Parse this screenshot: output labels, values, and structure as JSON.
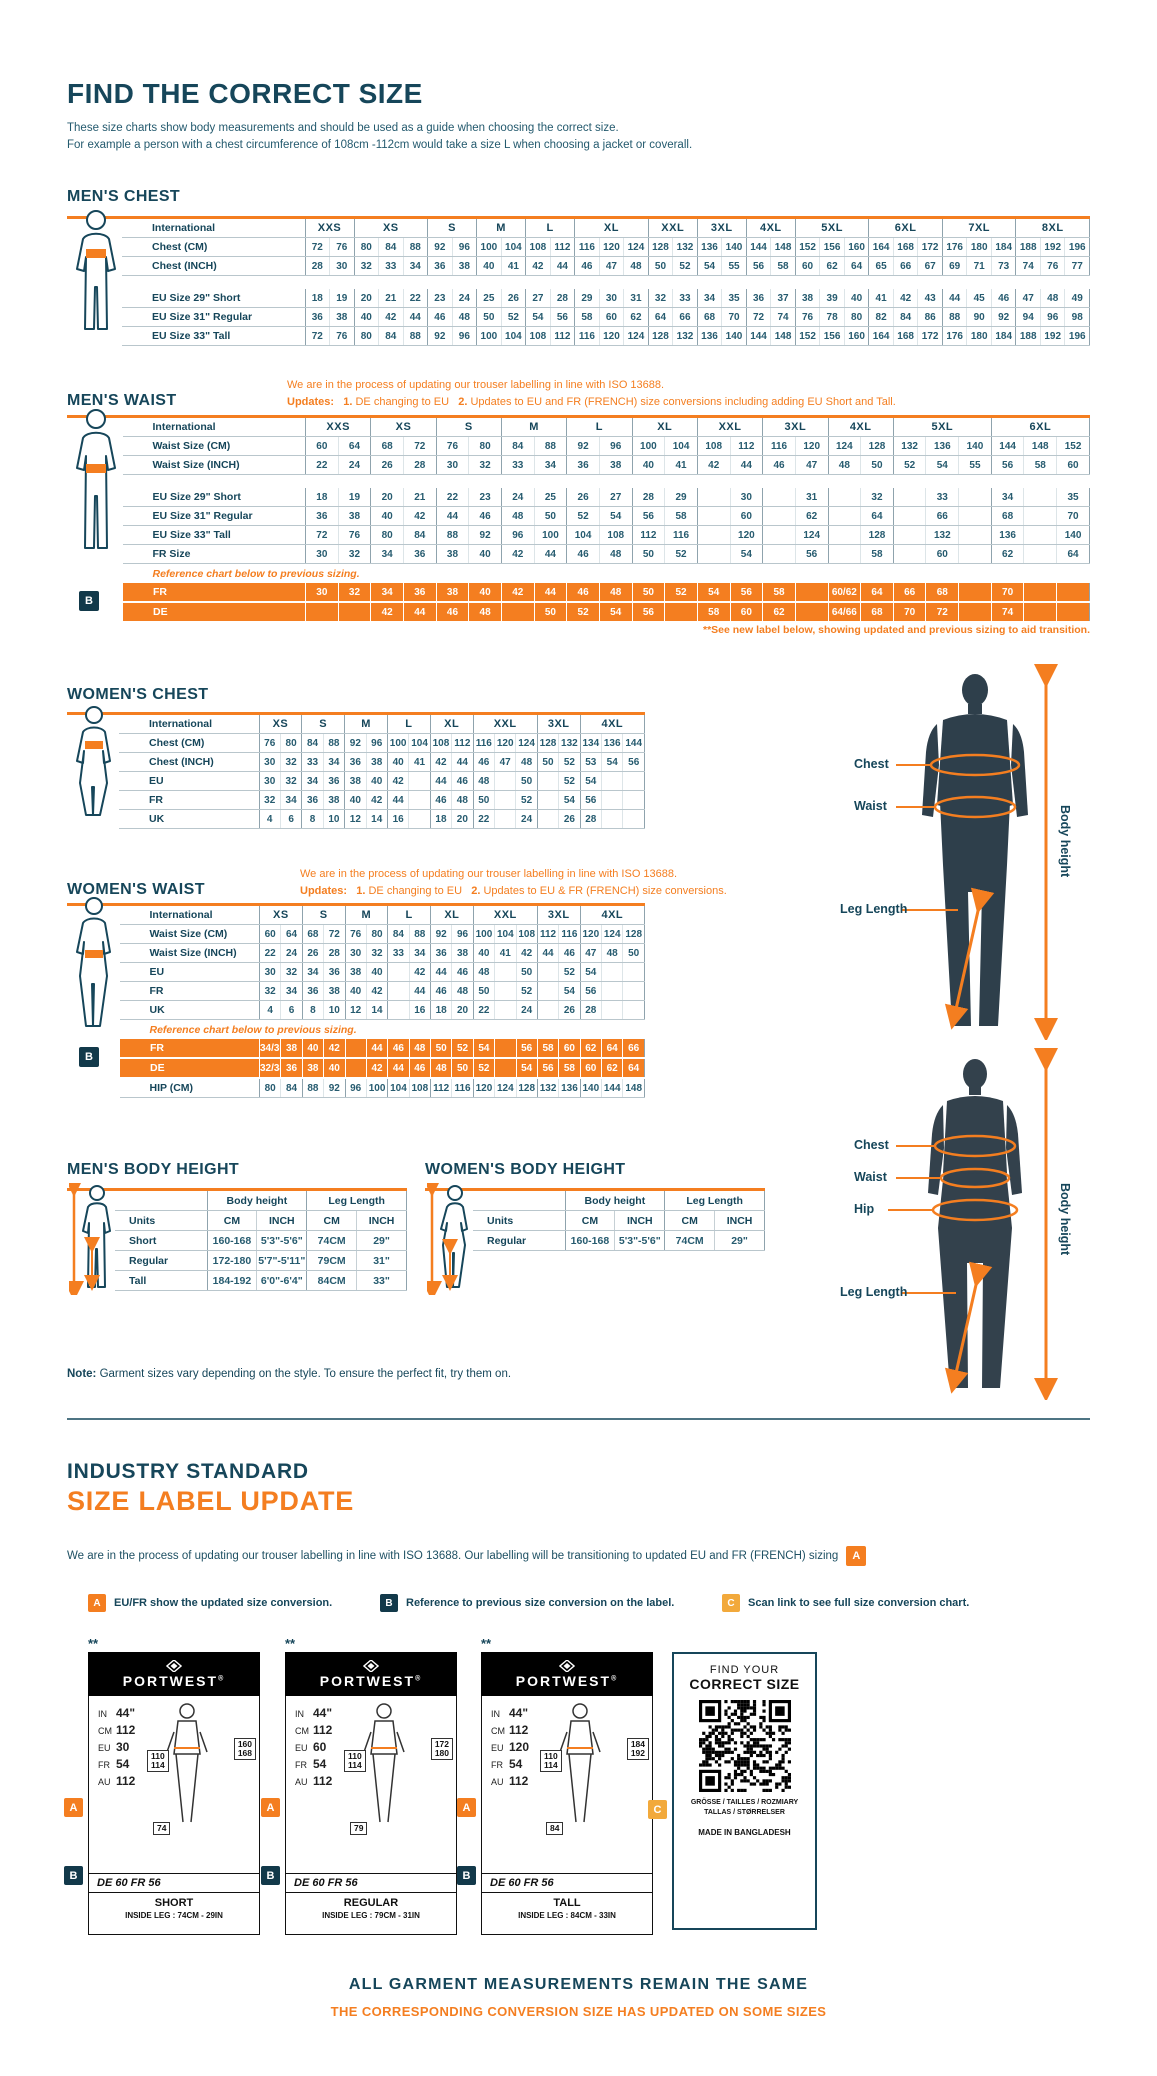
{
  "page": {
    "title": "FIND THE CORRECT SIZE",
    "subtitle1": "These size charts show body measurements and should be used as a guide when choosing the correct size.",
    "subtitle2": "For example a person with a chest circumference of 108cm -112cm would take a size L when choosing a jacket or coverall.",
    "note_label": "Note:",
    "note_text": " Garment sizes vary depending on the style. To ensure the perfect fit, try them on.",
    "bottom_line1": "ALL GARMENT MEASUREMENTS REMAIN THE SAME",
    "bottom_line2": "THE CORRESPONDING CONVERSION SIZE HAS UPDATED ON SOME SIZES"
  },
  "colors": {
    "accent_orange": "#F47E20",
    "dark_teal": "#16465A",
    "amber": "#F2A93B"
  },
  "figure_labels": {
    "chest": "Chest",
    "waist": "Waist",
    "hip": "Hip",
    "leg": "Leg Length",
    "height": "Body height"
  },
  "mens_chest": {
    "title": "MEN'S CHEST",
    "corner": "International",
    "sizes": [
      {
        "label": "XXS",
        "span": 2
      },
      {
        "label": "XS",
        "span": 3
      },
      {
        "label": "S",
        "span": 2
      },
      {
        "label": "M",
        "span": 2
      },
      {
        "label": "L",
        "span": 2
      },
      {
        "label": "XL",
        "span": 3
      },
      {
        "label": "XXL",
        "span": 2
      },
      {
        "label": "3XL",
        "span": 2
      },
      {
        "label": "4XL",
        "span": 2
      },
      {
        "label": "5XL",
        "span": 3
      },
      {
        "label": "6XL",
        "span": 3
      },
      {
        "label": "7XL",
        "span": 3
      },
      {
        "label": "8XL",
        "span": 3
      }
    ],
    "rows": [
      {
        "l": "Chest (CM)",
        "c": [
          "72",
          "76",
          "80",
          "84",
          "88",
          "92",
          "96",
          "100",
          "104",
          "108",
          "112",
          "116",
          "120",
          "124",
          "128",
          "132",
          "136",
          "140",
          "144",
          "148",
          "152",
          "156",
          "160",
          "164",
          "168",
          "172",
          "176",
          "180",
          "184",
          "188",
          "192",
          "196"
        ]
      },
      {
        "l": "Chest (INCH)",
        "c": [
          "28",
          "30",
          "32",
          "33",
          "34",
          "36",
          "38",
          "40",
          "41",
          "42",
          "44",
          "46",
          "47",
          "48",
          "50",
          "52",
          "54",
          "55",
          "56",
          "58",
          "60",
          "62",
          "64",
          "65",
          "66",
          "67",
          "69",
          "71",
          "73",
          "74",
          "76",
          "77"
        ]
      },
      {
        "t": "gap"
      },
      {
        "l": "EU Size 29\" Short",
        "c": [
          "18",
          "19",
          "20",
          "21",
          "22",
          "23",
          "24",
          "25",
          "26",
          "27",
          "28",
          "29",
          "30",
          "31",
          "32",
          "33",
          "34",
          "35",
          "36",
          "37",
          "38",
          "39",
          "40",
          "41",
          "42",
          "43",
          "44",
          "45",
          "46",
          "47",
          "48",
          "49"
        ]
      },
      {
        "l": "EU Size 31\" Regular",
        "c": [
          "36",
          "38",
          "40",
          "42",
          "44",
          "46",
          "48",
          "50",
          "52",
          "54",
          "56",
          "58",
          "60",
          "62",
          "64",
          "66",
          "68",
          "70",
          "72",
          "74",
          "76",
          "78",
          "80",
          "82",
          "84",
          "86",
          "88",
          "90",
          "92",
          "94",
          "96",
          "98"
        ]
      },
      {
        "l": "EU Size 33\" Tall",
        "c": [
          "72",
          "76",
          "80",
          "84",
          "88",
          "92",
          "96",
          "100",
          "104",
          "108",
          "112",
          "116",
          "120",
          "124",
          "128",
          "132",
          "136",
          "140",
          "144",
          "148",
          "152",
          "156",
          "160",
          "164",
          "168",
          "172",
          "176",
          "180",
          "184",
          "188",
          "192",
          "196"
        ]
      }
    ]
  },
  "mens_waist": {
    "title": "MEN'S WAIST",
    "corner": "International",
    "update_intro": "We are in the process of updating our trouser labelling in line with ISO 13688.",
    "updates_label": "Updates:",
    "update1_num": "1.",
    "update1": "DE changing to EU",
    "update2_num": "2.",
    "update2": "Updates to EU and FR (FRENCH) size conversions including adding EU Short and Tall.",
    "b_badge": "B",
    "footnote": "**See new label below, showing updated and previous sizing to aid transition.",
    "sizes": [
      {
        "label": "XXS",
        "span": 2
      },
      {
        "label": "XS",
        "span": 2
      },
      {
        "label": "S",
        "span": 2
      },
      {
        "label": "M",
        "span": 2
      },
      {
        "label": "L",
        "span": 2
      },
      {
        "label": "XL",
        "span": 2
      },
      {
        "label": "XXL",
        "span": 2
      },
      {
        "label": "3XL",
        "span": 2
      },
      {
        "label": "4XL",
        "span": 2
      },
      {
        "label": "5XL",
        "span": 3
      },
      {
        "label": "6XL",
        "span": 3
      }
    ],
    "rows": [
      {
        "l": "Waist Size (CM)",
        "c": [
          "60",
          "64",
          "68",
          "72",
          "76",
          "80",
          "84",
          "88",
          "92",
          "96",
          "100",
          "104",
          "108",
          "112",
          "116",
          "120",
          "124",
          "128",
          "132",
          "136",
          "140",
          "144",
          "148",
          "152"
        ]
      },
      {
        "l": "Waist Size (INCH)",
        "c": [
          "22",
          "24",
          "26",
          "28",
          "30",
          "32",
          "33",
          "34",
          "36",
          "38",
          "40",
          "41",
          "42",
          "44",
          "46",
          "47",
          "48",
          "50",
          "52",
          "54",
          "55",
          "56",
          "58",
          "60"
        ]
      },
      {
        "t": "gap"
      },
      {
        "l": "EU Size 29\" Short",
        "c": [
          "18",
          "19",
          "20",
          "21",
          "22",
          "23",
          "24",
          "25",
          "26",
          "27",
          "28",
          "29",
          "",
          "30",
          "",
          "31",
          "",
          "32",
          "",
          "33",
          "",
          "34",
          "",
          "35"
        ]
      },
      {
        "l": "EU Size 31\" Regular",
        "c": [
          "36",
          "38",
          "40",
          "42",
          "44",
          "46",
          "48",
          "50",
          "52",
          "54",
          "56",
          "58",
          "",
          "60",
          "",
          "62",
          "",
          "64",
          "",
          "66",
          "",
          "68",
          "",
          "70"
        ]
      },
      {
        "l": "EU Size 33\" Tall",
        "c": [
          "72",
          "76",
          "80",
          "84",
          "88",
          "92",
          "96",
          "100",
          "104",
          "108",
          "112",
          "116",
          "",
          "120",
          "",
          "124",
          "",
          "128",
          "",
          "132",
          "",
          "136",
          "",
          "140"
        ]
      },
      {
        "l": "FR Size",
        "c": [
          "30",
          "32",
          "34",
          "36",
          "38",
          "40",
          "42",
          "44",
          "46",
          "48",
          "50",
          "52",
          "",
          "54",
          "",
          "56",
          "",
          "58",
          "",
          "60",
          "",
          "62",
          "",
          "64"
        ]
      },
      {
        "t": "note",
        "text": "Reference chart below to previous sizing."
      },
      {
        "t": "orange",
        "l": "FR",
        "c": [
          "30",
          "32",
          "34",
          "36",
          "38",
          "40",
          "42",
          "44",
          "46",
          "48",
          "50",
          "52",
          "54",
          "56",
          "58",
          "",
          "60/62",
          "64",
          "66",
          "68",
          "",
          "70",
          "",
          ""
        ]
      },
      {
        "t": "orange",
        "l": "DE",
        "c": [
          "",
          "",
          "42",
          "44",
          "46",
          "48",
          "",
          "50",
          "52",
          "54",
          "56",
          "",
          "58",
          "60",
          "62",
          "",
          "64/66",
          "68",
          "70",
          "72",
          "",
          "74",
          "",
          ""
        ]
      }
    ]
  },
  "womens_chest": {
    "title": "WOMEN'S CHEST",
    "corner": "International",
    "sizes": [
      {
        "label": "XS",
        "span": 2
      },
      {
        "label": "S",
        "span": 2
      },
      {
        "label": "M",
        "span": 2
      },
      {
        "label": "L",
        "span": 2
      },
      {
        "label": "XL",
        "span": 2
      },
      {
        "label": "XXL",
        "span": 3
      },
      {
        "label": "3XL",
        "span": 2
      },
      {
        "label": "4XL",
        "span": 3
      }
    ],
    "rows": [
      {
        "l": "Chest (CM)",
        "c": [
          "76",
          "80",
          "84",
          "88",
          "92",
          "96",
          "100",
          "104",
          "108",
          "112",
          "116",
          "120",
          "124",
          "128",
          "132",
          "134",
          "136",
          "144"
        ]
      },
      {
        "l": "Chest (INCH)",
        "c": [
          "30",
          "32",
          "33",
          "34",
          "36",
          "38",
          "40",
          "41",
          "42",
          "44",
          "46",
          "47",
          "48",
          "50",
          "52",
          "53",
          "54",
          "56"
        ]
      },
      {
        "l": "EU",
        "c": [
          "30",
          "32",
          "34",
          "36",
          "38",
          "40",
          "42",
          "",
          "44",
          "46",
          "48",
          "",
          "50",
          "",
          "52",
          "54",
          "",
          ""
        ]
      },
      {
        "l": "FR",
        "c": [
          "32",
          "34",
          "36",
          "38",
          "40",
          "42",
          "44",
          "",
          "46",
          "48",
          "50",
          "",
          "52",
          "",
          "54",
          "56",
          "",
          ""
        ]
      },
      {
        "l": "UK",
        "c": [
          "4",
          "6",
          "8",
          "10",
          "12",
          "14",
          "16",
          "",
          "18",
          "20",
          "22",
          "",
          "24",
          "",
          "26",
          "28",
          "",
          ""
        ]
      }
    ]
  },
  "womens_waist": {
    "title": "WOMEN'S WAIST",
    "corner": "International",
    "update_intro": "We are in the process of updating our trouser labelling in line with ISO 13688.",
    "updates_label": "Updates:",
    "update1_num": "1.",
    "update1": "DE changing to EU",
    "update2_num": "2.",
    "update2": "Updates to EU & FR (FRENCH) size conversions.",
    "b_badge": "B",
    "sizes": [
      {
        "label": "XS",
        "span": 2
      },
      {
        "label": "S",
        "span": 2
      },
      {
        "label": "M",
        "span": 2
      },
      {
        "label": "L",
        "span": 2
      },
      {
        "label": "XL",
        "span": 2
      },
      {
        "label": "XXL",
        "span": 3
      },
      {
        "label": "3XL",
        "span": 2
      },
      {
        "label": "4XL",
        "span": 3
      }
    ],
    "rows": [
      {
        "l": "Waist Size (CM)",
        "c": [
          "60",
          "64",
          "68",
          "72",
          "76",
          "80",
          "84",
          "88",
          "92",
          "96",
          "100",
          "104",
          "108",
          "112",
          "116",
          "120",
          "124",
          "128"
        ]
      },
      {
        "l": "Waist Size (INCH)",
        "c": [
          "22",
          "24",
          "26",
          "28",
          "30",
          "32",
          "33",
          "34",
          "36",
          "38",
          "40",
          "41",
          "42",
          "44",
          "46",
          "47",
          "48",
          "50"
        ]
      },
      {
        "l": "EU",
        "c": [
          "30",
          "32",
          "34",
          "36",
          "38",
          "40",
          "",
          "42",
          "44",
          "46",
          "48",
          "",
          "50",
          "",
          "52",
          "54",
          "",
          ""
        ]
      },
      {
        "l": "FR",
        "c": [
          "32",
          "34",
          "36",
          "38",
          "40",
          "42",
          "",
          "44",
          "46",
          "48",
          "50",
          "",
          "52",
          "",
          "54",
          "56",
          "",
          ""
        ]
      },
      {
        "l": "UK",
        "c": [
          "4",
          "6",
          "8",
          "10",
          "12",
          "14",
          "",
          "16",
          "18",
          "20",
          "22",
          "",
          "24",
          "",
          "26",
          "28",
          "",
          ""
        ]
      },
      {
        "t": "note",
        "text": "Reference chart below to previous sizing."
      },
      {
        "t": "orange",
        "l": "FR",
        "c": [
          "34/36",
          "38",
          "40",
          "42",
          "",
          "44",
          "46",
          "48",
          "50",
          "52",
          "54",
          "",
          "56",
          "58",
          "60",
          "62",
          "64",
          "66"
        ]
      },
      {
        "t": "orange",
        "l": "DE",
        "c": [
          "32/34",
          "36",
          "38",
          "40",
          "",
          "42",
          "44",
          "46",
          "48",
          "50",
          "52",
          "",
          "54",
          "56",
          "58",
          "60",
          "62",
          "64"
        ]
      },
      {
        "l": "HIP (CM)",
        "c": [
          "80",
          "84",
          "88",
          "92",
          "96",
          "100",
          "104",
          "108",
          "112",
          "116",
          "120",
          "124",
          "128",
          "132",
          "136",
          "140",
          "144",
          "148"
        ]
      }
    ]
  },
  "mens_body_height": {
    "title": "MEN'S BODY HEIGHT",
    "group1": "Body height",
    "group2": "Leg Length",
    "units_label": "Units",
    "units": [
      "CM",
      "INCH",
      "CM",
      "INCH"
    ],
    "rows": [
      [
        "Short",
        "160-168",
        "5'3\"-5'6\"",
        "74CM",
        "29\""
      ],
      [
        "Regular",
        "172-180",
        "5'7\"-5'11\"",
        "79CM",
        "31\""
      ],
      [
        "Tall",
        "184-192",
        "6'0\"-6'4\"",
        "84CM",
        "33\""
      ]
    ]
  },
  "womens_body_height": {
    "title": "WOMEN'S BODY HEIGHT",
    "group1": "Body height",
    "group2": "Leg Length",
    "units_label": "Units",
    "units": [
      "CM",
      "INCH",
      "CM",
      "INCH"
    ],
    "rows": [
      [
        "Regular",
        "160-168",
        "5'3\"-5'6\"",
        "74CM",
        "29\""
      ]
    ]
  },
  "industry": {
    "heading1": "INDUSTRY STANDARD",
    "heading2": "SIZE LABEL UPDATE",
    "paragraph": "We are in the process of updating our trouser labelling in line with ISO 13688. Our labelling will be transitioning to updated EU and FR (FRENCH) sizing",
    "badge_a": "A",
    "badge_b": "B",
    "badge_c": "C",
    "legend": [
      {
        "badge": "A",
        "text": "EU/FR show the updated size conversion."
      },
      {
        "badge": "B",
        "text": "Reference to previous size conversion on the label."
      },
      {
        "badge": "C",
        "text": "Scan link to see full size conversion chart."
      }
    ]
  },
  "brand": {
    "name": "PORTWEST",
    "reg": "®"
  },
  "cards": [
    {
      "stars": "**",
      "fit": "SHORT",
      "inside_leg": "INSIDE LEG : 74CM - 29IN",
      "sizes": [
        {
          "k": "IN",
          "v": "44\""
        },
        {
          "k": "CM",
          "v": "112"
        },
        {
          "k": "EU",
          "v": "30"
        },
        {
          "k": "FR",
          "v": "54"
        },
        {
          "k": "AU",
          "v": "112"
        }
      ],
      "waist_top": "110",
      "waist_bot": "114",
      "h_top": "160",
      "h_bot": "168",
      "leg": "74",
      "prev": "DE 60 FR 56"
    },
    {
      "stars": "**",
      "fit": "REGULAR",
      "inside_leg": "INSIDE LEG : 79CM - 31IN",
      "sizes": [
        {
          "k": "IN",
          "v": "44\""
        },
        {
          "k": "CM",
          "v": "112"
        },
        {
          "k": "EU",
          "v": "60"
        },
        {
          "k": "FR",
          "v": "54"
        },
        {
          "k": "AU",
          "v": "112"
        }
      ],
      "waist_top": "110",
      "waist_bot": "114",
      "h_top": "172",
      "h_bot": "180",
      "leg": "79",
      "prev": "DE 60 FR 56"
    },
    {
      "stars": "**",
      "fit": "TALL",
      "inside_leg": "INSIDE LEG : 84CM - 33IN",
      "sizes": [
        {
          "k": "IN",
          "v": "44\""
        },
        {
          "k": "CM",
          "v": "112"
        },
        {
          "k": "EU",
          "v": "120"
        },
        {
          "k": "FR",
          "v": "54"
        },
        {
          "k": "AU",
          "v": "112"
        }
      ],
      "waist_top": "110",
      "waist_bot": "114",
      "h_top": "184",
      "h_bot": "192",
      "leg": "84",
      "prev": "DE 60 FR 56"
    }
  ],
  "qr_card": {
    "line1": "FIND YOUR",
    "line2": "CORRECT SIZE",
    "langs1": "GRÖSSE / TAILLES / ROZMIARY",
    "langs2": "TALLAS / STØRRELSER",
    "made": "MADE IN BANGLADESH"
  }
}
